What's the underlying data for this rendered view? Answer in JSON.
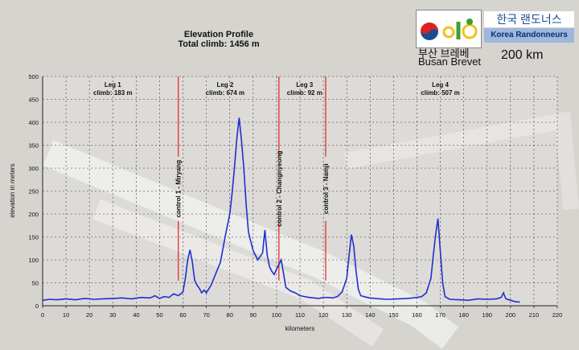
{
  "header": {
    "title": "Elevation Profile",
    "subtitle": "Total climb: 1456 m",
    "logo_korean": "한국 랜도너스",
    "logo_english": "Korea Randonneurs",
    "brevet_korean": "부산 브레베",
    "brevet_english": "Busan Brevet",
    "distance": "200 km"
  },
  "colors": {
    "line": "#1f2fd0",
    "control": "#e02020",
    "grid": "#3a3a3a",
    "logo_green": "#3c9e2e",
    "logo_blue": "#1a4d8f"
  },
  "chart_data": {
    "type": "line",
    "xlabel": "kilometers",
    "ylabel": "elevation in meters",
    "xlim": [
      0,
      220
    ],
    "ylim": [
      0,
      500
    ],
    "xticks": [
      0,
      10,
      20,
      30,
      40,
      50,
      60,
      70,
      80,
      90,
      100,
      110,
      120,
      130,
      140,
      150,
      160,
      170,
      180,
      190,
      200,
      210,
      220
    ],
    "yticks": [
      0,
      50,
      100,
      150,
      200,
      250,
      300,
      350,
      400,
      450,
      500
    ],
    "legs": [
      {
        "name": "Leg 1",
        "climb": "climb: 183 m",
        "x": 30
      },
      {
        "name": "Leg 2",
        "climb": "climb: 674 m",
        "x": 78
      },
      {
        "name": "Leg 3",
        "climb": "climb: 92 m",
        "x": 112
      },
      {
        "name": "Leg 4",
        "climb": "climb: 507 m",
        "x": 170
      }
    ],
    "controls": [
      {
        "label": "control 1 - Miryang",
        "x": 58
      },
      {
        "label": "control 2 - Changnyeong",
        "x": 101
      },
      {
        "label": "control 3 - Namji",
        "x": 121
      }
    ],
    "series": [
      {
        "x": [
          0,
          3,
          6,
          10,
          14,
          18,
          22,
          26,
          30,
          34,
          38,
          42,
          46,
          48,
          50,
          52,
          54,
          56,
          58,
          60,
          61,
          62,
          63,
          64,
          65,
          66,
          67,
          68,
          69,
          70,
          72,
          74,
          76,
          78,
          80,
          81,
          82,
          83,
          84,
          85,
          86,
          87,
          88,
          90,
          92,
          94,
          95,
          96,
          97,
          98,
          99,
          100,
          101,
          102,
          103,
          104,
          106,
          108,
          110,
          112,
          114,
          116,
          118,
          120,
          122,
          124,
          126,
          128,
          130,
          131,
          132,
          133,
          134,
          135,
          136,
          138,
          140,
          144,
          148,
          152,
          156,
          160,
          162,
          164,
          166,
          167,
          168,
          169,
          170,
          171,
          172,
          174,
          178,
          182,
          186,
          190,
          194,
          196,
          197,
          198,
          200,
          202,
          204
        ],
        "y": [
          12,
          14,
          13,
          15,
          13,
          16,
          14,
          15,
          16,
          17,
          15,
          18,
          17,
          22,
          16,
          20,
          18,
          26,
          22,
          30,
          60,
          100,
          122,
          95,
          55,
          45,
          38,
          28,
          34,
          28,
          45,
          70,
          95,
          150,
          200,
          245,
          300,
          365,
          410,
          360,
          300,
          220,
          160,
          120,
          100,
          115,
          165,
          110,
          85,
          75,
          68,
          80,
          90,
          100,
          70,
          40,
          32,
          28,
          22,
          20,
          18,
          17,
          16,
          18,
          18,
          17,
          20,
          30,
          60,
          110,
          155,
          130,
          75,
          35,
          22,
          19,
          17,
          15,
          14,
          15,
          16,
          18,
          20,
          28,
          60,
          110,
          155,
          190,
          120,
          50,
          20,
          14,
          13,
          12,
          15,
          14,
          15,
          18,
          28,
          15,
          12,
          9,
          8
        ]
      }
    ]
  }
}
